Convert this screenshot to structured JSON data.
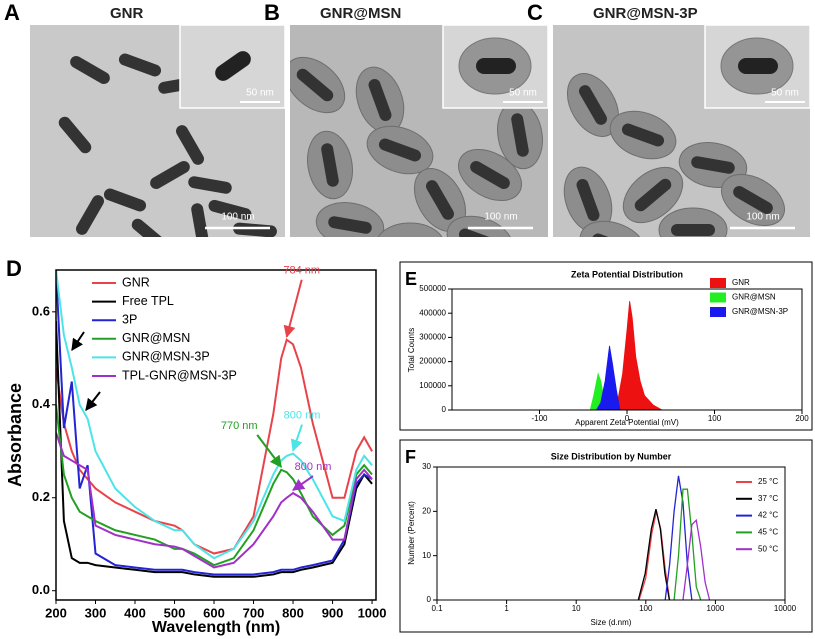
{
  "tem_panels": [
    {
      "label": "A",
      "title": "GNR",
      "inset_scale_bar": "50 nm",
      "scale_bar": "100 nm"
    },
    {
      "label": "B",
      "title": "GNR@MSN",
      "inset_scale_bar": "50 nm",
      "scale_bar": "100 nm"
    },
    {
      "label": "C",
      "title": "GNR@MSN-3P",
      "inset_scale_bar": "50 nm",
      "scale_bar": "100 nm"
    }
  ],
  "chart_data": [
    {
      "type": "line",
      "panel": "D",
      "xlabel": "Wavelength (nm)",
      "ylabel": "Absorbance",
      "x": [
        200,
        220,
        240,
        260,
        280,
        300,
        350,
        400,
        450,
        500,
        520,
        550,
        600,
        650,
        700,
        750,
        770,
        784,
        800,
        820,
        850,
        900,
        930,
        960,
        980,
        1000
      ],
      "xlim": [
        200,
        1010
      ],
      "xticks": [
        200,
        300,
        400,
        500,
        600,
        700,
        800,
        900,
        1000
      ],
      "ylim": [
        -0.02,
        0.69
      ],
      "yticks": [
        {
          "value": 0,
          "label": "0.0"
        },
        0.2,
        0.4,
        0.6
      ],
      "series": [
        {
          "name": "GNR",
          "color": "#e8434a",
          "values": [
            0.48,
            0.36,
            0.3,
            0.26,
            0.24,
            0.22,
            0.19,
            0.17,
            0.15,
            0.14,
            0.13,
            0.1,
            0.08,
            0.09,
            0.16,
            0.38,
            0.5,
            0.54,
            0.53,
            0.48,
            0.36,
            0.2,
            0.2,
            0.3,
            0.33,
            0.3
          ]
        },
        {
          "name": "Free TPL",
          "color": "#000000",
          "values": [
            0.58,
            0.15,
            0.07,
            0.06,
            0.06,
            0.055,
            0.05,
            0.045,
            0.04,
            0.04,
            0.04,
            0.035,
            0.03,
            0.03,
            0.03,
            0.035,
            0.04,
            0.04,
            0.04,
            0.045,
            0.05,
            0.06,
            0.1,
            0.22,
            0.25,
            0.23
          ]
        },
        {
          "name": "3P",
          "color": "#2424d4",
          "values": [
            0.69,
            0.35,
            0.45,
            0.22,
            0.27,
            0.08,
            0.055,
            0.05,
            0.045,
            0.045,
            0.045,
            0.04,
            0.035,
            0.035,
            0.035,
            0.04,
            0.045,
            0.045,
            0.045,
            0.05,
            0.055,
            0.065,
            0.11,
            0.23,
            0.25,
            0.24
          ]
        },
        {
          "name": "GNR@MSN",
          "color": "#22a022",
          "values": [
            0.4,
            0.25,
            0.2,
            0.17,
            0.16,
            0.15,
            0.13,
            0.12,
            0.11,
            0.09,
            0.09,
            0.08,
            0.055,
            0.07,
            0.13,
            0.23,
            0.26,
            0.255,
            0.24,
            0.21,
            0.16,
            0.12,
            0.14,
            0.25,
            0.27,
            0.25
          ]
        },
        {
          "name": "GNR@MSN-3P",
          "color": "#4de4e8",
          "values": [
            0.69,
            0.55,
            0.48,
            0.4,
            0.37,
            0.3,
            0.22,
            0.18,
            0.15,
            0.13,
            0.13,
            0.1,
            0.07,
            0.09,
            0.15,
            0.25,
            0.28,
            0.29,
            0.295,
            0.28,
            0.24,
            0.16,
            0.15,
            0.26,
            0.29,
            0.27
          ]
        },
        {
          "name": "TPL-GNR@MSN-3P",
          "color": "#a030c8",
          "values": [
            0.34,
            0.29,
            0.28,
            0.27,
            0.26,
            0.14,
            0.12,
            0.11,
            0.1,
            0.095,
            0.09,
            0.075,
            0.05,
            0.06,
            0.1,
            0.16,
            0.19,
            0.2,
            0.21,
            0.2,
            0.17,
            0.11,
            0.11,
            0.24,
            0.26,
            0.24
          ]
        }
      ],
      "annotations": [
        {
          "text": "784 nm",
          "color": "#e8434a",
          "x": 784,
          "y": 0.54
        },
        {
          "text": "800 nm",
          "color": "#4de4e8",
          "x": 800,
          "y": 0.295
        },
        {
          "text": "770 nm",
          "color": "#22a022",
          "x": 770,
          "y": 0.26
        },
        {
          "text": "800 nm",
          "color": "#a030c8",
          "x": 800,
          "y": 0.21
        }
      ]
    },
    {
      "type": "area",
      "panel": "E",
      "title": "Zeta Potential Distribution",
      "xlabel": "Apparent Zeta Potential (mV)",
      "ylabel": "Total Counts",
      "xlim": [
        -200,
        200
      ],
      "xticks": [
        -100,
        0,
        100,
        200
      ],
      "ylim": [
        0,
        500000
      ],
      "yticks": [
        0,
        100000,
        200000,
        300000,
        400000,
        500000
      ],
      "series": [
        {
          "name": "GNR",
          "color": "#ee1111",
          "x": [
            -20,
            -10,
            -5,
            0,
            3,
            6,
            10,
            15,
            20,
            30,
            40
          ],
          "values": [
            0,
            50000,
            150000,
            330000,
            450000,
            380000,
            220000,
            120000,
            60000,
            20000,
            0
          ]
        },
        {
          "name": "GNR@MSN",
          "color": "#22ee22",
          "x": [
            -42,
            -38,
            -33,
            -30,
            -26,
            -22
          ],
          "values": [
            0,
            60000,
            150000,
            120000,
            40000,
            0
          ]
        },
        {
          "name": "GNR@MSN-3P",
          "color": "#1a1aee",
          "x": [
            -35,
            -30,
            -25,
            -20,
            -17,
            -12,
            -8
          ],
          "values": [
            0,
            30000,
            120000,
            265000,
            200000,
            80000,
            0
          ]
        }
      ]
    },
    {
      "type": "line",
      "panel": "F",
      "title": "Size Distribution by Number",
      "xlabel": "Size (d.nm)",
      "ylabel": "Number (Percent)",
      "log_x": true,
      "xlim": [
        0.1,
        10000
      ],
      "xticks": [
        0.1,
        1,
        10,
        100,
        1000,
        10000
      ],
      "ylim": [
        0,
        30
      ],
      "yticks": [
        0,
        10,
        20,
        30
      ],
      "series": [
        {
          "name": "25 °C",
          "color": "#e8434a",
          "x": [
            80,
            100,
            122,
            142,
            164,
            190,
            220
          ],
          "values": [
            0,
            5,
            15,
            20,
            16,
            7,
            0
          ]
        },
        {
          "name": "37 °C",
          "color": "#000000",
          "x": [
            78,
            98,
            120,
            140,
            162,
            188,
            218
          ],
          "values": [
            0,
            6,
            16,
            20.5,
            16,
            6,
            0
          ]
        },
        {
          "name": "42 °C",
          "color": "#2424d4",
          "x": [
            190,
            220,
            255,
            295,
            342,
            396,
            459
          ],
          "values": [
            0,
            8,
            20,
            28,
            22,
            8,
            0
          ]
        },
        {
          "name": "45 °C",
          "color": "#22a022",
          "x": [
            255,
            295,
            342,
            396,
            459,
            531,
            615
          ],
          "values": [
            0,
            10,
            25,
            25,
            15,
            3,
            0
          ]
        },
        {
          "name": "50 °C",
          "color": "#a030c8",
          "x": [
            342,
            396,
            459,
            531,
            615,
            712,
            825
          ],
          "values": [
            0,
            8,
            17,
            18,
            12,
            4,
            0
          ]
        }
      ]
    }
  ]
}
